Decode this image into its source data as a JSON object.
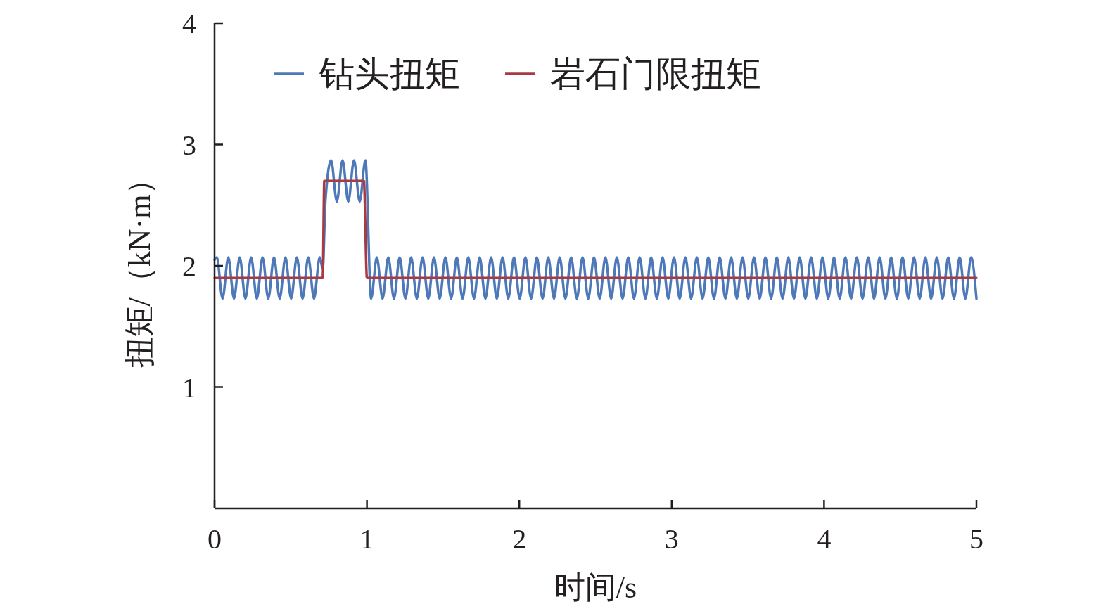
{
  "chart_data": {
    "type": "line",
    "xlabel": "时间/s",
    "ylabel": "扭矩/（kN·m）",
    "xlim": [
      0,
      5
    ],
    "ylim": [
      0,
      4
    ],
    "xticks": [
      0,
      1,
      2,
      3,
      4,
      5
    ],
    "yticks": [
      1,
      2,
      3,
      4
    ],
    "legend": "top left",
    "series": [
      {
        "name": "钻头扭矩",
        "color": "#4e79b8",
        "x": [
          0,
          0.015,
          0.0525,
          0.09,
          0.1275,
          0.165,
          0.2025,
          0.24,
          0.2775,
          0.315,
          0.3525,
          0.39,
          0.4275,
          0.465,
          0.5025,
          0.54,
          0.5775,
          0.615,
          0.6525,
          0.69,
          0.71,
          0.7275,
          0.765,
          0.8025,
          0.84,
          0.8775,
          0.915,
          0.9525,
          0.99,
          1.0275,
          1.065,
          1.1025,
          1.14,
          1.1775,
          1.215,
          1.2525,
          1.29,
          1.3275,
          1.365,
          1.4025,
          1.44,
          1.4775,
          1.515,
          1.5525,
          1.59,
          1.6275,
          1.665,
          1.7025,
          1.74,
          1.7775,
          1.815,
          1.8525,
          1.89,
          1.9275,
          1.965,
          2.0025,
          2.04,
          2.0775,
          2.115,
          2.1525,
          2.19,
          2.2275,
          2.265,
          2.3025,
          2.34,
          2.3775,
          2.415,
          2.4525,
          2.49,
          2.5275,
          2.565,
          2.6025,
          2.64,
          2.6775,
          2.715,
          2.7525,
          2.79,
          2.8275,
          2.865,
          2.9025,
          2.94,
          2.9775,
          3.015,
          3.0525,
          3.09,
          3.1275,
          3.165,
          3.2025,
          3.24,
          3.2775,
          3.315,
          3.3525,
          3.39,
          3.4275,
          3.465,
          3.5025,
          3.54,
          3.5775,
          3.615,
          3.6525,
          3.69,
          3.7275,
          3.765,
          3.8025,
          3.84,
          3.8775,
          3.915,
          3.9525,
          3.99,
          4.0275,
          4.065,
          4.1025,
          4.14,
          4.1775,
          4.215,
          4.2525,
          4.29,
          4.3275,
          4.365,
          4.4025,
          4.44,
          4.4775,
          4.515,
          4.5525,
          4.59,
          4.6275,
          4.665,
          4.7025,
          4.74,
          4.7775,
          4.815,
          4.8525,
          4.89,
          4.9275,
          4.965,
          5.0
        ],
        "values": [
          2.05,
          2.07,
          1.73,
          2.07,
          1.73,
          2.07,
          1.73,
          2.07,
          1.73,
          2.07,
          1.73,
          2.07,
          1.73,
          2.07,
          1.73,
          2.07,
          1.73,
          2.07,
          1.73,
          2.07,
          1.98,
          2.53,
          2.87,
          2.53,
          2.87,
          2.53,
          2.87,
          2.53,
          2.87,
          1.73,
          2.07,
          1.73,
          2.07,
          1.73,
          2.07,
          1.73,
          2.07,
          1.73,
          2.07,
          1.73,
          2.07,
          1.73,
          2.07,
          1.73,
          2.07,
          1.73,
          2.07,
          1.73,
          2.07,
          1.73,
          2.07,
          1.73,
          2.07,
          1.73,
          2.07,
          1.73,
          2.07,
          1.73,
          2.07,
          1.73,
          2.07,
          1.73,
          2.07,
          1.73,
          2.07,
          1.73,
          2.07,
          1.73,
          2.07,
          1.73,
          2.07,
          1.73,
          2.07,
          1.73,
          2.07,
          1.73,
          2.07,
          1.73,
          2.07,
          1.73,
          2.07,
          1.73,
          2.07,
          1.73,
          2.07,
          1.73,
          2.07,
          1.73,
          2.07,
          1.73,
          2.07,
          1.73,
          2.07,
          1.73,
          2.07,
          1.73,
          2.07,
          1.73,
          2.07,
          1.73,
          2.07,
          1.73,
          2.07,
          1.73,
          2.07,
          1.73,
          2.07,
          1.73,
          2.07,
          1.73,
          2.07,
          1.73,
          2.07,
          1.73,
          2.07,
          1.73,
          2.07,
          1.73,
          2.07,
          1.73,
          2.07,
          1.73,
          2.07,
          1.73,
          2.07,
          1.73,
          2.07,
          1.73,
          2.07,
          1.73,
          2.07,
          1.73,
          2.07,
          1.73,
          2.07,
          1.73
        ]
      },
      {
        "name": "岩石门限扭矩",
        "color": "#a83a45",
        "x": [
          0,
          0.71,
          0.72,
          0.98,
          1.0,
          5
        ],
        "values": [
          1.9,
          1.9,
          2.7,
          2.7,
          1.9,
          1.9
        ]
      }
    ]
  }
}
